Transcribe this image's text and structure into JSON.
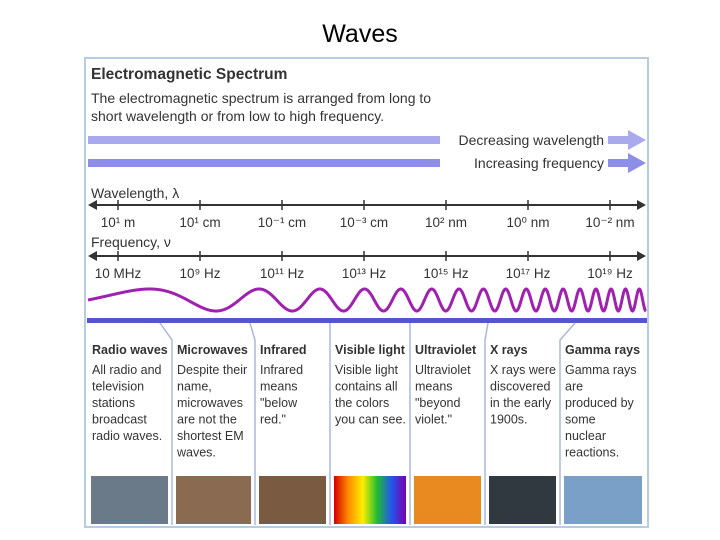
{
  "title": "Waves",
  "panel": {
    "heading": "Electromagnetic Spectrum",
    "intro": [
      "The electromagnetic spectrum is arranged from long to",
      "short wavelength or from low to high frequency."
    ],
    "arrows": [
      "Decreasing wavelength",
      "Increasing frequency"
    ],
    "wavelength": {
      "label": "Wavelength, λ",
      "ticks": [
        "10¹ m",
        "10¹ cm",
        "10⁻¹ cm",
        "10⁻³ cm",
        "10² nm",
        "10⁰ nm",
        "10⁻² nm"
      ]
    },
    "frequency": {
      "label": "Frequency, ν",
      "ticks": [
        "10 MHz",
        "10⁹ Hz",
        "10¹¹ Hz",
        "10¹³ Hz",
        "10¹⁵ Hz",
        "10¹⁷ Hz",
        "10¹⁹ Hz"
      ]
    },
    "bands": [
      {
        "name": "Radio waves",
        "lines": [
          "All radio and",
          "television",
          "stations",
          "broadcast",
          "radio waves."
        ]
      },
      {
        "name": "Microwaves",
        "lines": [
          "Despite their",
          "name,",
          "microwaves",
          "are not the",
          "shortest EM",
          "waves."
        ]
      },
      {
        "name": "Infrared",
        "lines": [
          "Infrared",
          "means",
          "\"below",
          "red.\""
        ]
      },
      {
        "name": "Visible light",
        "lines": [
          "Visible light",
          "contains all",
          "the colors",
          "you can see."
        ]
      },
      {
        "name": "Ultraviolet",
        "lines": [
          "Ultraviolet",
          "means",
          "\"beyond",
          "violet.\""
        ]
      },
      {
        "name": "X rays",
        "lines": [
          "X rays were",
          "discovered",
          "in the early",
          "1900s."
        ]
      },
      {
        "name": "Gamma rays",
        "lines": [
          "Gamma rays",
          "are",
          "produced by",
          "some",
          "nuclear",
          "reactions."
        ]
      }
    ]
  }
}
